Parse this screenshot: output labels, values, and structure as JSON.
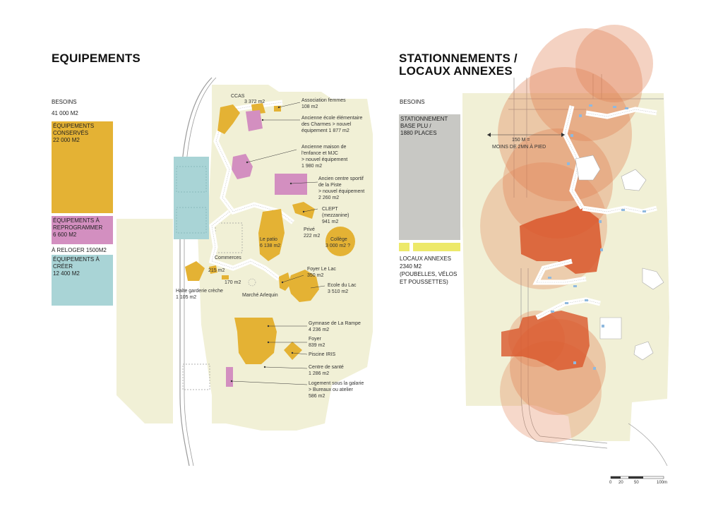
{
  "left": {
    "title": "EQUIPEMENTS",
    "besoins_label": "BESOINS",
    "besoins_value": "41 000 M2",
    "blocks": [
      {
        "l1": "ÉQUIPEMENTS",
        "l2": "CONSERVÉS",
        "l3": "22 000 M2",
        "color": "#e4b234"
      },
      {
        "l1": "ÉQUIPEMENTS À",
        "l2": "REPROGRAMMER",
        "l3": "6 600 M2",
        "color": "#d38fc0"
      },
      {
        "l1": "À RELOGER 1500M2"
      },
      {
        "l1": "ÉQUIPEMENTS À",
        "l2": "CRÉER",
        "l3": "12 400 M2",
        "color": "#a9d4d6"
      }
    ]
  },
  "right": {
    "title_l1": "STATIONNEMENTS /",
    "title_l2": "LOCAUX ANNEXES",
    "besoins_label": "BESOINS",
    "parking": {
      "l1": "STATIONNEMENT",
      "l2": "BASE PLU /",
      "l3": "1880 PLACES",
      "color": "#c8c8c4"
    },
    "annexes": {
      "l1": "LOCAUX ANNEXES",
      "l2": "2340 M2",
      "l3": "(POUBELLES, VÉLOS",
      "l4": "ET POUSSETTES)",
      "color": "#ede96a"
    },
    "distance": {
      "l1": "150 M =",
      "l2": "MOINS DE 2MN À PIED"
    },
    "scale": {
      "t0": "0",
      "t1": "20",
      "t2": "50",
      "t3": "100m"
    }
  },
  "labels": {
    "ccas": {
      "l1": "CCAS",
      "l2": "3 372 m2"
    },
    "assoc": {
      "l1": "Association femmes",
      "l2": "108 m2"
    },
    "charmes": {
      "l1": "Ancienne école élémentaire",
      "l2": "des Charmes > nouvel",
      "l3": "équipement 1 877 m2"
    },
    "enfance": {
      "l1": "Ancienne maison de",
      "l2": "l'enfance et MJC",
      "l3": "> nouvel équipement",
      "l4": "1 980 m2"
    },
    "piste": {
      "l1": "Ancien centre sportif",
      "l2": "de la Piste",
      "l3": "> nouvel équipement",
      "l4": "2 260 m2"
    },
    "clept": {
      "l1": "CLEPT",
      "l2": "(mezzanine)",
      "l3": "941 m2"
    },
    "prive": {
      "l1": "Privé",
      "l2": "222 m2"
    },
    "college": {
      "l1": "Collège",
      "l2": "3 000 m2 ?"
    },
    "patio": {
      "l1": "Le patio",
      "l2": "6 138 m2"
    },
    "commerces": {
      "l1": "Commerces",
      "l2": "215 m2",
      "l3": "170 m2"
    },
    "foyerlac": {
      "l1": "Foyer Le Lac",
      "l2": "350 m2"
    },
    "ecolelac": {
      "l1": "Ecole du Lac",
      "l2": "3 510 m2"
    },
    "arlequin": "Marché Arlequin",
    "halte": {
      "l1": "Halte garderie crèche",
      "l2": "1 105 m2"
    },
    "rampe": {
      "l1": "Gymnase de La Rampe",
      "l2": "4 236 m2"
    },
    "foyer": {
      "l1": "Foyer",
      "l2": "839 m2"
    },
    "iris": "Piscine IRIS",
    "sante": {
      "l1": "Centre de santé",
      "l2": "1 286 m2"
    },
    "logement": {
      "l1": "Logement sous la galarie",
      "l2": "> Bureaux ou atelier",
      "l3": "586 m2"
    }
  }
}
